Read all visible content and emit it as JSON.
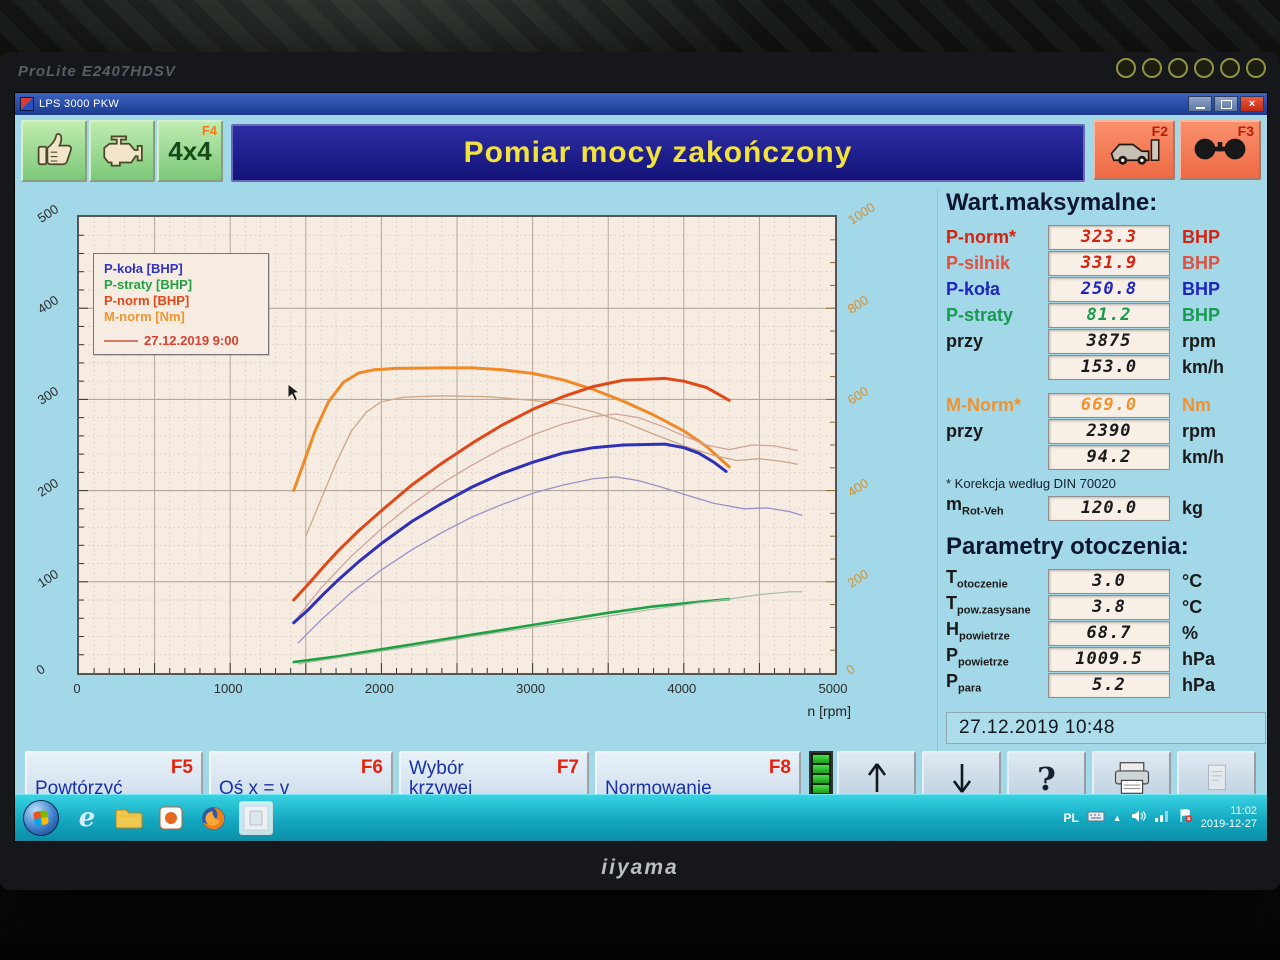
{
  "scene": {
    "monitor_brand": "ProLite E2407HDSV",
    "monitor_logo": "iiyama"
  },
  "window": {
    "title": "LPS 3000 PKW"
  },
  "colors": {
    "app_bg": "#a2d8e8",
    "title_bar": "#1c1c86",
    "title_text": "#f2e23c",
    "fkey_red": "#e8220c",
    "fkey_orange": "#f07d18",
    "value_red": "#d62310",
    "value_blue": "#2025c0",
    "value_green": "#189a50",
    "value_orange": "#ef9230",
    "value_black": "#1a1a1a"
  },
  "header": {
    "title": "Pomiar mocy zakończony",
    "buttons_left": [
      {
        "name": "thumbs-up",
        "fkey": ""
      },
      {
        "name": "engine",
        "fkey": ""
      },
      {
        "name": "4x4",
        "label": "4x4",
        "fkey": "F4"
      }
    ],
    "buttons_right": [
      {
        "name": "car-brake-test",
        "fkey": "F2"
      },
      {
        "name": "dyno-rollers",
        "fkey": "F3"
      }
    ]
  },
  "chart_data": {
    "type": "line",
    "x_label": "n [rpm]",
    "x_range": [
      0,
      5000
    ],
    "x_ticks": [
      0,
      1000,
      2000,
      3000,
      4000,
      5000
    ],
    "y_left_range": [
      0,
      500
    ],
    "y_left_ticks": [
      0,
      100,
      200,
      300,
      400,
      500
    ],
    "y_right_range": [
      0,
      1000
    ],
    "y_right_ticks": [
      0,
      200,
      400,
      600,
      800,
      1000
    ],
    "grid": true,
    "legend_position": "top-left",
    "legend": [
      {
        "label": "P-koła [BHP]",
        "color": "#3333bb"
      },
      {
        "label": "P-straty [BHP]",
        "color": "#22a044"
      },
      {
        "label": "P-norm [BHP]",
        "color": "#e04818"
      },
      {
        "label": "M-norm [Nm]",
        "color": "#f0952f"
      }
    ],
    "legend_date": "27.12.2019 9:00",
    "series": [
      {
        "name": "M-norm [Nm]",
        "axis": "right",
        "color": "#f08a28",
        "width": 3,
        "points": [
          [
            1420,
            400
          ],
          [
            1480,
            455
          ],
          [
            1560,
            530
          ],
          [
            1650,
            595
          ],
          [
            1750,
            638
          ],
          [
            1850,
            658
          ],
          [
            1950,
            665
          ],
          [
            2100,
            668
          ],
          [
            2390,
            669
          ],
          [
            2600,
            669
          ],
          [
            2800,
            665
          ],
          [
            3000,
            657
          ],
          [
            3200,
            643
          ],
          [
            3400,
            622
          ],
          [
            3600,
            596
          ],
          [
            3800,
            566
          ],
          [
            4000,
            531
          ],
          [
            4150,
            497
          ],
          [
            4300,
            452
          ]
        ]
      },
      {
        "name": "M-norm previous run",
        "axis": "right",
        "color": "#c9a98a",
        "width": 1.3,
        "points": [
          [
            1500,
            300
          ],
          [
            1600,
            380
          ],
          [
            1700,
            460
          ],
          [
            1800,
            530
          ],
          [
            1900,
            572
          ],
          [
            2000,
            595
          ],
          [
            2150,
            605
          ],
          [
            2400,
            608
          ],
          [
            2700,
            606
          ],
          [
            3000,
            598
          ],
          [
            3200,
            589
          ],
          [
            3400,
            573
          ],
          [
            3600,
            551
          ],
          [
            3800,
            524
          ],
          [
            4000,
            498
          ],
          [
            4200,
            477
          ],
          [
            4350,
            466
          ],
          [
            4500,
            470
          ],
          [
            4650,
            464
          ],
          [
            4750,
            458
          ]
        ]
      },
      {
        "name": "P-norm [BHP]",
        "axis": "left",
        "color": "#e04818",
        "width": 3,
        "points": [
          [
            1420,
            80
          ],
          [
            1520,
            98
          ],
          [
            1620,
            117
          ],
          [
            1720,
            135
          ],
          [
            1850,
            156
          ],
          [
            2000,
            178
          ],
          [
            2200,
            206
          ],
          [
            2400,
            230
          ],
          [
            2600,
            252
          ],
          [
            2800,
            272
          ],
          [
            3000,
            289
          ],
          [
            3200,
            303
          ],
          [
            3400,
            314
          ],
          [
            3600,
            321
          ],
          [
            3875,
            323
          ],
          [
            4000,
            320
          ],
          [
            4150,
            313
          ],
          [
            4300,
            299
          ]
        ]
      },
      {
        "name": "P-norm previous run",
        "axis": "left",
        "color": "#d2a49c",
        "width": 1.3,
        "points": [
          [
            1450,
            62
          ],
          [
            1600,
            93
          ],
          [
            1800,
            128
          ],
          [
            2000,
            158
          ],
          [
            2200,
            185
          ],
          [
            2400,
            208
          ],
          [
            2600,
            228
          ],
          [
            2800,
            246
          ],
          [
            3000,
            261
          ],
          [
            3200,
            273
          ],
          [
            3400,
            281
          ],
          [
            3550,
            284
          ],
          [
            3700,
            280
          ],
          [
            3850,
            271
          ],
          [
            4000,
            260
          ],
          [
            4150,
            250
          ],
          [
            4300,
            245
          ],
          [
            4450,
            250
          ],
          [
            4600,
            249
          ],
          [
            4750,
            244
          ]
        ]
      },
      {
        "name": "P-koła [BHP]",
        "axis": "left",
        "color": "#3030b8",
        "width": 3,
        "points": [
          [
            1420,
            55
          ],
          [
            1520,
            70
          ],
          [
            1620,
            87
          ],
          [
            1720,
            103
          ],
          [
            1850,
            122
          ],
          [
            2000,
            142
          ],
          [
            2200,
            166
          ],
          [
            2400,
            186
          ],
          [
            2600,
            204
          ],
          [
            2800,
            219
          ],
          [
            3000,
            231
          ],
          [
            3200,
            241
          ],
          [
            3400,
            247
          ],
          [
            3600,
            250
          ],
          [
            3875,
            251
          ],
          [
            4000,
            247
          ],
          [
            4100,
            241
          ],
          [
            4200,
            231
          ],
          [
            4280,
            221
          ]
        ]
      },
      {
        "name": "P-koła previous run",
        "axis": "left",
        "color": "#9b93c6",
        "width": 1.3,
        "points": [
          [
            1450,
            33
          ],
          [
            1600,
            58
          ],
          [
            1800,
            88
          ],
          [
            2000,
            113
          ],
          [
            2200,
            135
          ],
          [
            2400,
            154
          ],
          [
            2600,
            171
          ],
          [
            2800,
            185
          ],
          [
            3000,
            197
          ],
          [
            3200,
            206
          ],
          [
            3400,
            213
          ],
          [
            3550,
            215
          ],
          [
            3700,
            211
          ],
          [
            3850,
            204
          ],
          [
            4000,
            196
          ],
          [
            4200,
            186
          ],
          [
            4400,
            180
          ],
          [
            4550,
            181
          ],
          [
            4700,
            177
          ],
          [
            4780,
            173
          ]
        ]
      },
      {
        "name": "P-straty [BHP]",
        "axis": "left",
        "color": "#1fa042",
        "width": 2.6,
        "points": [
          [
            1420,
            12
          ],
          [
            1700,
            18
          ],
          [
            2000,
            26
          ],
          [
            2300,
            34
          ],
          [
            2600,
            42
          ],
          [
            2900,
            50
          ],
          [
            3200,
            58
          ],
          [
            3500,
            66
          ],
          [
            3800,
            73
          ],
          [
            4100,
            78
          ],
          [
            4300,
            81
          ]
        ]
      },
      {
        "name": "P-straty previous run",
        "axis": "left",
        "color": "#a8bca8",
        "width": 1.2,
        "points": [
          [
            1450,
            10
          ],
          [
            1800,
            19
          ],
          [
            2200,
            29
          ],
          [
            2600,
            40
          ],
          [
            3000,
            50
          ],
          [
            3400,
            60
          ],
          [
            3800,
            70
          ],
          [
            4100,
            77
          ],
          [
            4300,
            81
          ],
          [
            4500,
            86
          ],
          [
            4700,
            89
          ],
          [
            4780,
            89
          ]
        ]
      }
    ]
  },
  "max_values": {
    "heading": "Wart.maksymalne:",
    "rows": [
      {
        "label": "P-norm*",
        "value": "323.3",
        "unit": "BHP",
        "color": "#d62310",
        "value_color": "#d62310"
      },
      {
        "label": "P-silnik",
        "value": "331.9",
        "unit": "BHP",
        "color": "#e0503c",
        "value_color": "#d62310"
      },
      {
        "label": "P-koła",
        "value": "250.8",
        "unit": "BHP",
        "color": "#2025c0",
        "value_color": "#2025c0"
      },
      {
        "label": "P-straty",
        "value": "81.2",
        "unit": "BHP",
        "color": "#189a50",
        "value_color": "#189a50"
      },
      {
        "label": "przy",
        "value": "3875",
        "unit": "rpm",
        "color": "#1a1a1a",
        "value_color": "#1a1a1a"
      },
      {
        "label": "",
        "value": "153.0",
        "unit": "km/h",
        "color": "#1a1a1a",
        "value_color": "#1a1a1a"
      }
    ],
    "torque_rows": [
      {
        "label": "M-Norm*",
        "value": "669.0",
        "unit": "Nm",
        "color": "#ef9230",
        "value_color": "#ef9230"
      },
      {
        "label": "przy",
        "value": "2390",
        "unit": "rpm",
        "color": "#1a1a1a",
        "value_color": "#1a1a1a"
      },
      {
        "label": "",
        "value": "94.2",
        "unit": "km/h",
        "color": "#1a1a1a",
        "value_color": "#1a1a1a"
      }
    ],
    "note": "* Korekcja według DIN 70020",
    "extra_row": {
      "label": "m",
      "sub": "Rot-Veh",
      "value": "120.0",
      "unit": "kg",
      "color": "#1a1a1a",
      "value_color": "#1a1a1a"
    }
  },
  "environment": {
    "heading": "Parametry otoczenia:",
    "rows": [
      {
        "label": "T",
        "sub": "otoczenie",
        "value": "3.0",
        "unit": "°C",
        "color": "#1a1a1a",
        "value_color": "#1a1a1a"
      },
      {
        "label": "T",
        "sub": "pow.zasysane",
        "value": "3.8",
        "unit": "°C",
        "color": "#1a1a1a",
        "value_color": "#1a1a1a"
      },
      {
        "label": "H",
        "sub": "powietrze",
        "value": "68.7",
        "unit": "%",
        "color": "#1a1a1a",
        "value_color": "#1a1a1a"
      },
      {
        "label": "P",
        "sub": "powietrze",
        "value": "1009.5",
        "unit": "hPa",
        "color": "#1a1a1a",
        "value_color": "#1a1a1a"
      },
      {
        "label": "P",
        "sub": "para",
        "value": "5.2",
        "unit": "hPa",
        "color": "#1a1a1a",
        "value_color": "#1a1a1a"
      }
    ]
  },
  "datetime": "27.12.2019  10:48",
  "function_buttons": [
    {
      "label": "Powtórzyć",
      "fkey": "F5"
    },
    {
      "label": "Oś x = v",
      "fkey": "F6"
    },
    {
      "label": "Wybór\nkrzywej",
      "fkey": "F7"
    },
    {
      "label": "Normowanie",
      "fkey": "F8"
    }
  ],
  "toolbar": {
    "icons": [
      "arrow-up",
      "arrow-down",
      "help",
      "print",
      "export"
    ]
  },
  "taskbar": {
    "icons": [
      "internet-explorer",
      "folder",
      "media-app",
      "firefox",
      "background-app"
    ],
    "tray": {
      "lang": "PL",
      "time": "11:02",
      "date": "2019-12-27"
    }
  }
}
